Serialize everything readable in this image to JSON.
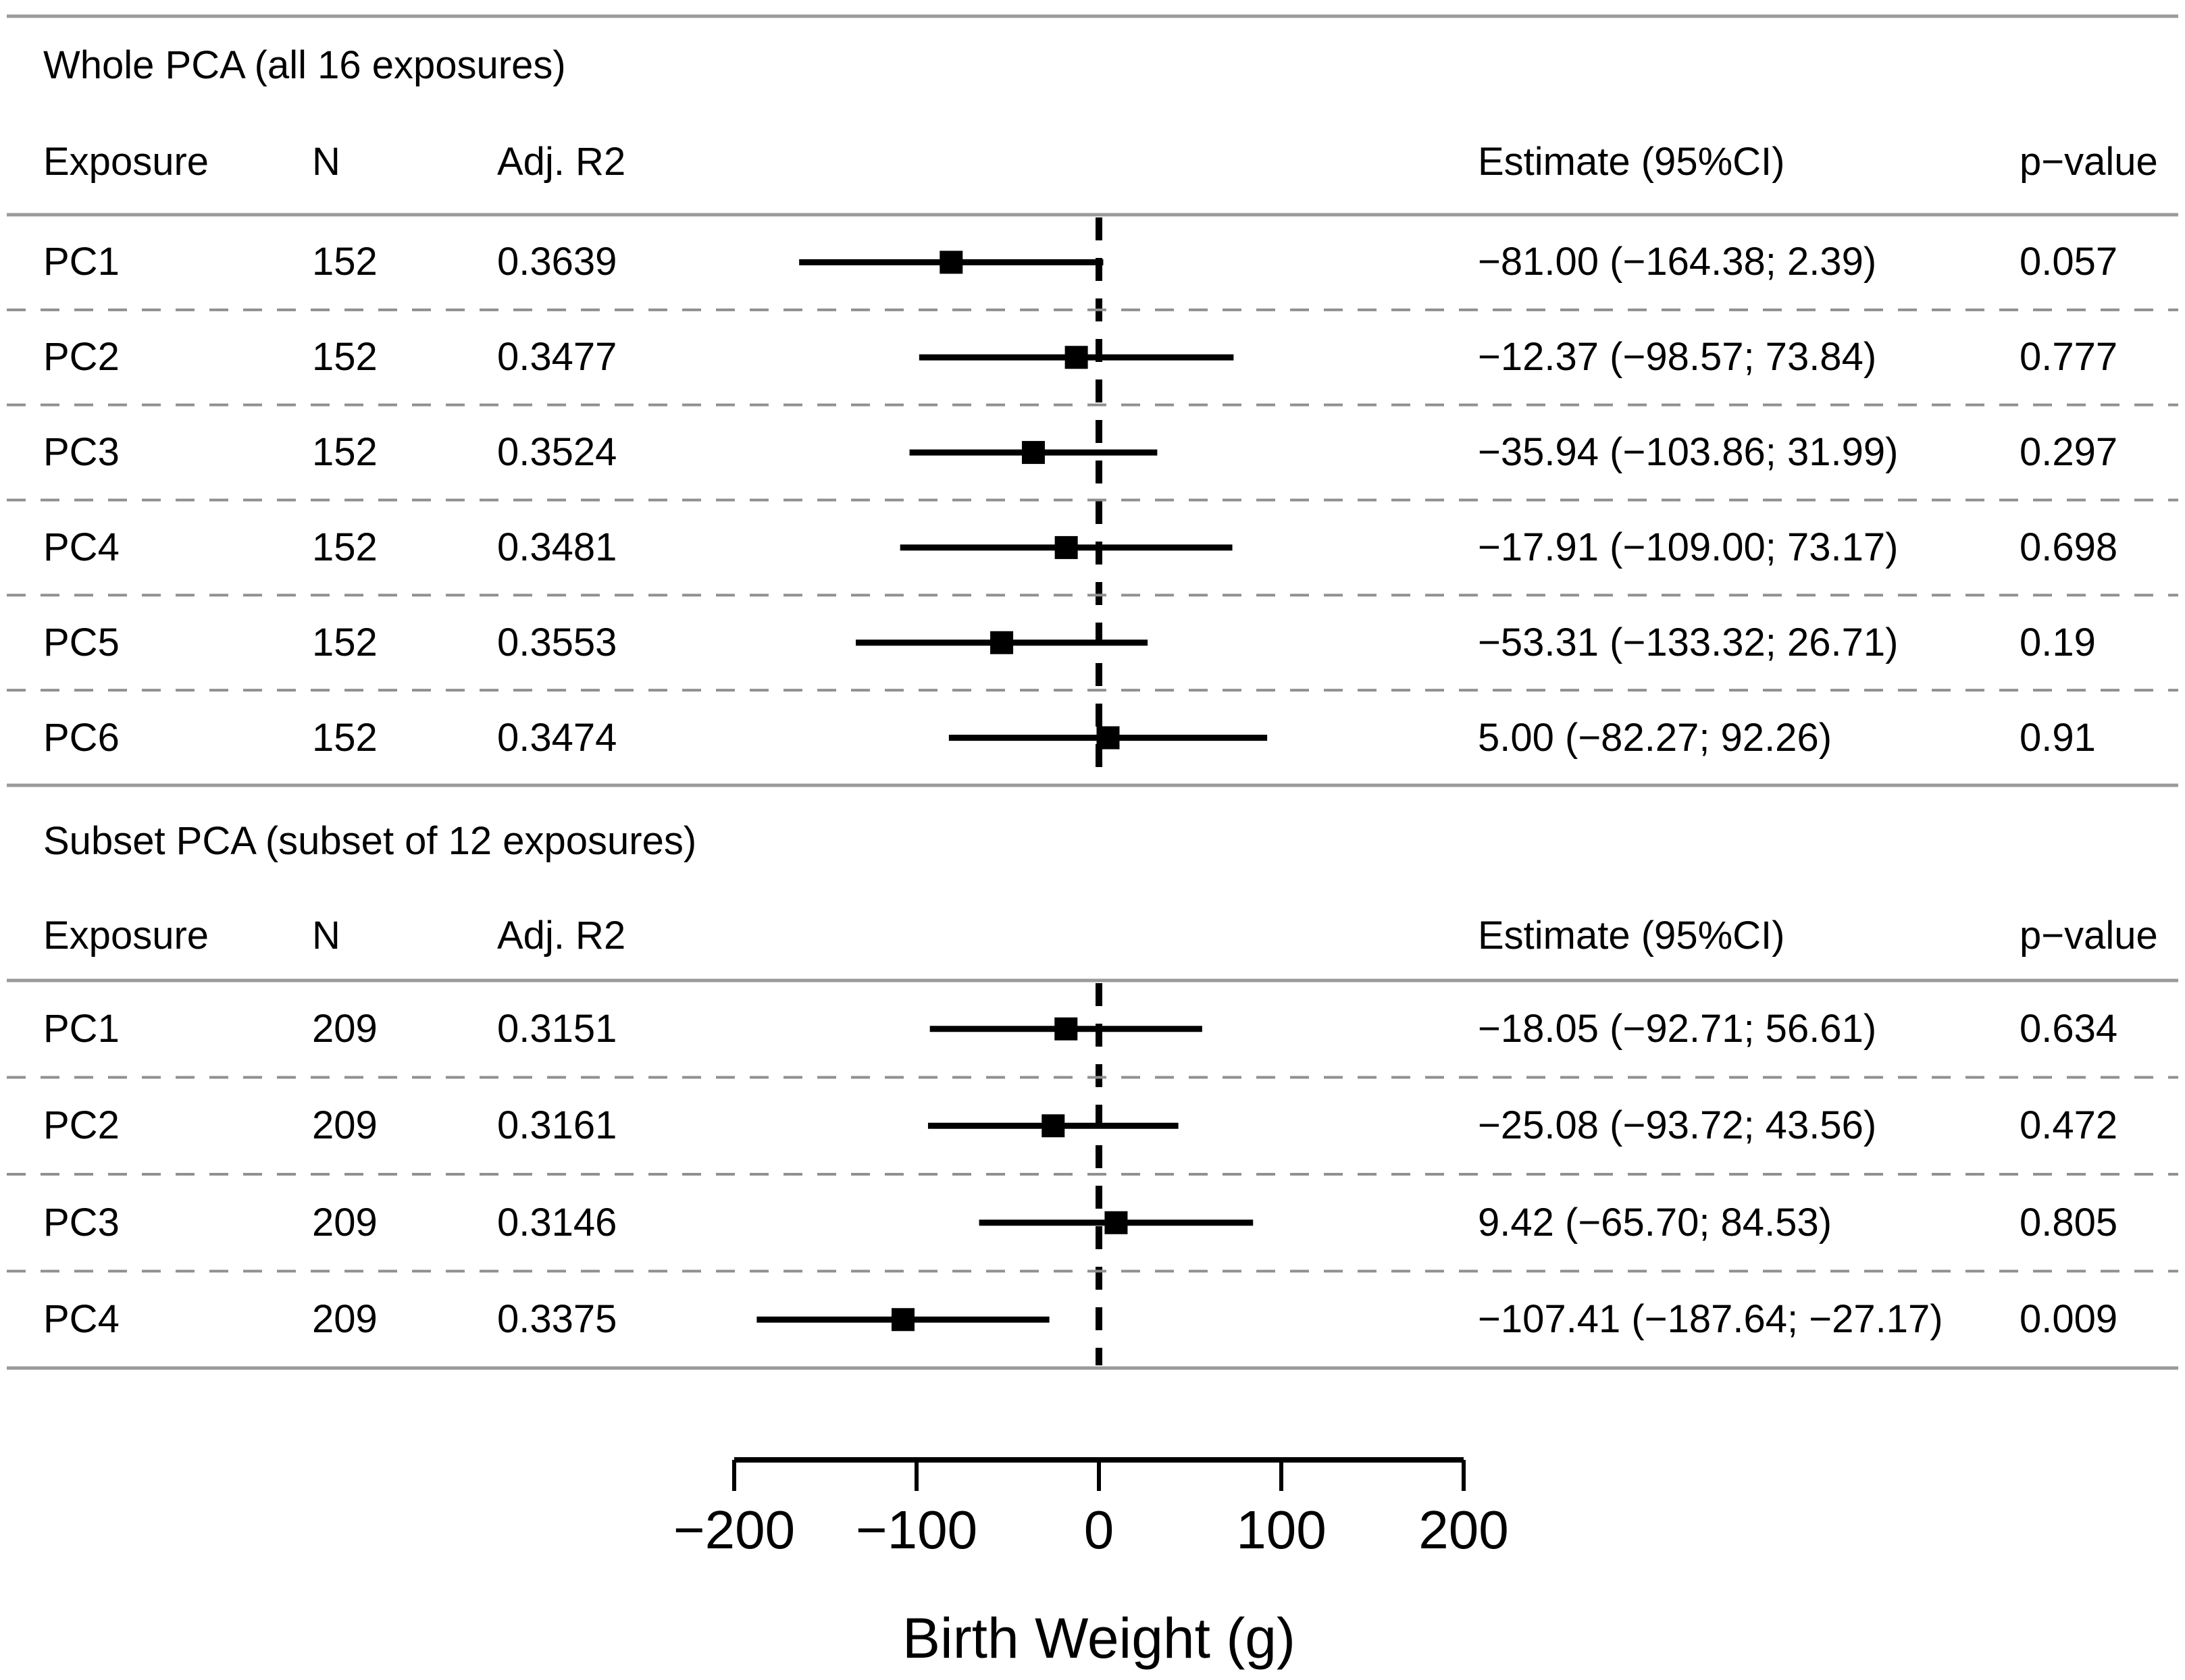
{
  "chart_data": {
    "type": "forest",
    "title": "",
    "xlabel": "Birth Weight (g)",
    "xlim": [
      -200,
      200
    ],
    "x_ticks": [
      -200,
      -100,
      0,
      100,
      200
    ],
    "x_tick_labels": [
      "−200",
      "−100",
      "0",
      "100",
      "200"
    ],
    "reference_line": 0,
    "grid": "dashed horizontal row separators",
    "marker": "black filled square",
    "sections": [
      {
        "title": "Whole PCA (all 16 exposures)",
        "columns": {
          "exposure": "Exposure",
          "n": "N",
          "adj_r2": "Adj. R2",
          "estimate": "Estimate (95%CI)",
          "p_value": "p−value"
        },
        "rows": [
          {
            "exposure": "PC1",
            "n": "152",
            "adj_r2": "0.3639",
            "estimate": -81.0,
            "ci_lower": -164.38,
            "ci_upper": 2.39,
            "estimate_label": "−81.00 (−164.38; 2.39)",
            "p_value": "0.057"
          },
          {
            "exposure": "PC2",
            "n": "152",
            "adj_r2": "0.3477",
            "estimate": -12.37,
            "ci_lower": -98.57,
            "ci_upper": 73.84,
            "estimate_label": "−12.37 (−98.57; 73.84)",
            "p_value": "0.777"
          },
          {
            "exposure": "PC3",
            "n": "152",
            "adj_r2": "0.3524",
            "estimate": -35.94,
            "ci_lower": -103.86,
            "ci_upper": 31.99,
            "estimate_label": "−35.94 (−103.86; 31.99)",
            "p_value": "0.297"
          },
          {
            "exposure": "PC4",
            "n": "152",
            "adj_r2": "0.3481",
            "estimate": -17.91,
            "ci_lower": -109.0,
            "ci_upper": 73.17,
            "estimate_label": "−17.91 (−109.00; 73.17)",
            "p_value": "0.698"
          },
          {
            "exposure": "PC5",
            "n": "152",
            "adj_r2": "0.3553",
            "estimate": -53.31,
            "ci_lower": -133.32,
            "ci_upper": 26.71,
            "estimate_label": "−53.31 (−133.32; 26.71)",
            "p_value": "0.19"
          },
          {
            "exposure": "PC6",
            "n": "152",
            "adj_r2": "0.3474",
            "estimate": 5.0,
            "ci_lower": -82.27,
            "ci_upper": 92.26,
            "estimate_label": "5.00 (−82.27; 92.26)",
            "p_value": "0.91"
          }
        ]
      },
      {
        "title": "Subset PCA (subset of 12 exposures)",
        "columns": {
          "exposure": "Exposure",
          "n": "N",
          "adj_r2": "Adj. R2",
          "estimate": "Estimate (95%CI)",
          "p_value": "p−value"
        },
        "rows": [
          {
            "exposure": "PC1",
            "n": "209",
            "adj_r2": "0.3151",
            "estimate": -18.05,
            "ci_lower": -92.71,
            "ci_upper": 56.61,
            "estimate_label": "−18.05 (−92.71; 56.61)",
            "p_value": "0.634"
          },
          {
            "exposure": "PC2",
            "n": "209",
            "adj_r2": "0.3161",
            "estimate": -25.08,
            "ci_lower": -93.72,
            "ci_upper": 43.56,
            "estimate_label": "−25.08 (−93.72; 43.56)",
            "p_value": "0.472"
          },
          {
            "exposure": "PC3",
            "n": "209",
            "adj_r2": "0.3146",
            "estimate": 9.42,
            "ci_lower": -65.7,
            "ci_upper": 84.53,
            "estimate_label": "9.42 (−65.70; 84.53)",
            "p_value": "0.805"
          },
          {
            "exposure": "PC4",
            "n": "209",
            "adj_r2": "0.3375",
            "estimate": -107.41,
            "ci_lower": -187.64,
            "ci_upper": -27.17,
            "estimate_label": "−107.41 (−187.64; −27.17)",
            "p_value": "0.009"
          }
        ]
      }
    ],
    "colors": {
      "text": "#000000",
      "forest_elements": "#000000",
      "section_rules": "#9a9a9a",
      "row_separators": "#909090"
    }
  }
}
